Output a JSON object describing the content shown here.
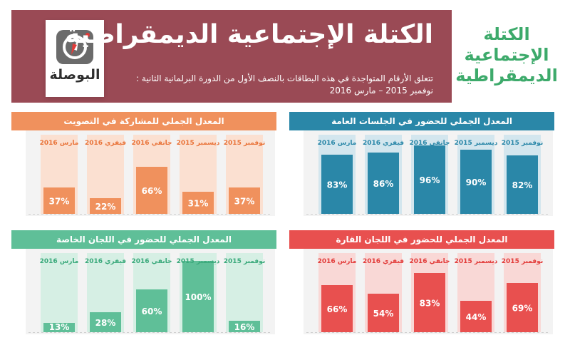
{
  "header": {
    "logo_text": "البوصلة",
    "title": "الكتلة الإجتماعية الديمقراطية",
    "subtitle_line1": "تتعلق الأرقام المتواجدة في هذه البطاقات بالنصف الأول من الدورة البرلمانية الثانية :",
    "subtitle_line2": "نوفمبر 2015 – مارس 2016",
    "side_title": "الكتلة الإجتماعية الديمقراطية"
  },
  "colors": {
    "banner": "#9a4a55",
    "side_title": "#3daa6b",
    "panel_bg": "#f3f3f3"
  },
  "chart_data": [
    {
      "type": "bar",
      "title": "المعدل الجملي للحضور في الجلسات العامة",
      "color": "#2a87a8",
      "stripe_color": "#d3e6ee",
      "label_color": "#2a87a8",
      "categories": [
        "نوفمبر 2015",
        "ديسمبر 2015",
        "جانفي 2016",
        "فيفري 2016",
        "مارس 2016"
      ],
      "values": [
        82,
        90,
        96,
        86,
        83
      ],
      "value_labels": [
        "82%",
        "90%",
        "96%",
        "86%",
        "83%"
      ],
      "ylim": [
        0,
        100
      ]
    },
    {
      "type": "bar",
      "title": "المعدل الجملي للمشاركة في التصويت",
      "color": "#f0915d",
      "stripe_color": "#fbe0d1",
      "label_color": "#e9743a",
      "categories": [
        "نوفمبر 2015",
        "ديسمبر 2015",
        "جانفي 2016",
        "فيفري 2016",
        "مارس 2016"
      ],
      "values": [
        37,
        31,
        66,
        22,
        37
      ],
      "value_labels": [
        "37%",
        "31%",
        "66%",
        "22%",
        "37%"
      ],
      "ylim": [
        0,
        100
      ]
    },
    {
      "type": "bar",
      "title": "المعدل الجملي للحضور في اللجان القارة",
      "color": "#e8504f",
      "stripe_color": "#f9d8d6",
      "label_color": "#e23c3a",
      "categories": [
        "نوفمبر 2015",
        "ديسمبر 2015",
        "جانفي 2016",
        "فيفري 2016",
        "مارس 2016"
      ],
      "values": [
        69,
        44,
        83,
        54,
        66
      ],
      "value_labels": [
        "69%",
        "44%",
        "83%",
        "54%",
        "66%"
      ],
      "ylim": [
        0,
        100
      ]
    },
    {
      "type": "bar",
      "title": "المعدل الجملي للحضور في اللجان الخاصة",
      "color": "#5fbf98",
      "stripe_color": "#d6efe4",
      "label_color": "#3aa97b",
      "categories": [
        "نوفمبر 2015",
        "ديسمبر 2015",
        "جانفي 2016",
        "فيفري 2016",
        "مارس 2016"
      ],
      "values": [
        16,
        100,
        60,
        28,
        13
      ],
      "value_labels": [
        "16%",
        "100%",
        "60%",
        "28%",
        "13%"
      ],
      "ylim": [
        0,
        100
      ]
    }
  ]
}
